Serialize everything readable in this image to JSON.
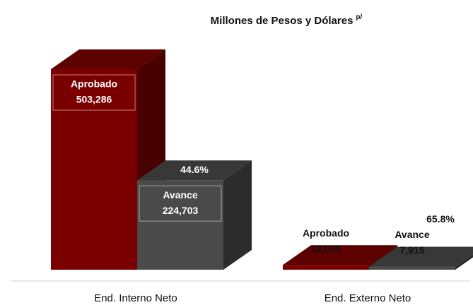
{
  "chart_data": {
    "type": "bar3d",
    "title": "Millones de Pesos y Dólares",
    "title_superscript": "p/",
    "categories": [
      "End. Interno Neto",
      "End. Externo Neto"
    ],
    "series": [
      {
        "name": "Aprobado",
        "color": "#7a0000",
        "values": [
          503286,
          12030
        ],
        "value_labels": [
          "503,286",
          "12,030"
        ]
      },
      {
        "name": "Avance",
        "color": "#4a4a4a",
        "values": [
          224703,
          7915
        ],
        "value_labels": [
          "224,703",
          "7,915"
        ],
        "percent_labels": [
          "44.6%",
          "65.8%"
        ]
      }
    ]
  }
}
